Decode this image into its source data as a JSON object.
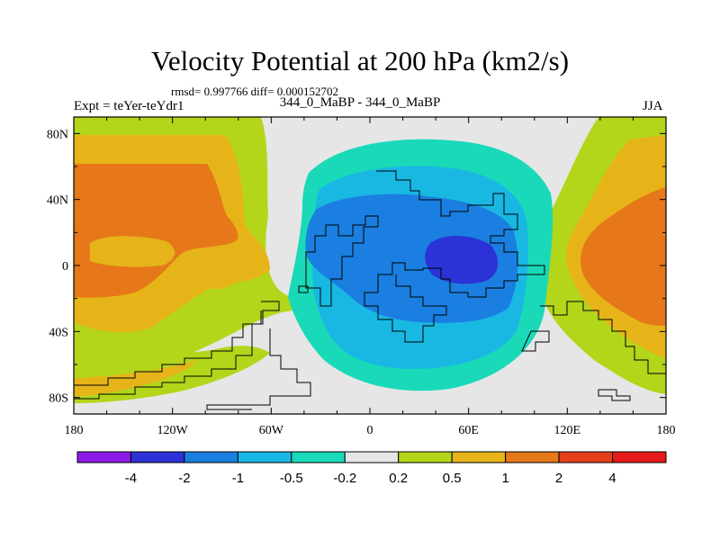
{
  "chart_data": {
    "type": "heatmap",
    "title": "Velocity Potential at 200 hPa (km2/s)",
    "stats_text": "rmsd= 0.997766 diff= 0.000152702",
    "subtitle": "344_0_MaBP - 344_0_MaBP",
    "left_label": "Expt = teYer-teYdr1",
    "right_label": "JJA",
    "x_ticks": [
      {
        "value": -180,
        "label": "180"
      },
      {
        "value": -120,
        "label": "120W"
      },
      {
        "value": -60,
        "label": "60W"
      },
      {
        "value": 0,
        "label": "0"
      },
      {
        "value": 60,
        "label": "60E"
      },
      {
        "value": 120,
        "label": "120E"
      },
      {
        "value": 180,
        "label": "180"
      }
    ],
    "y_ticks": [
      {
        "value": 80,
        "label": "80N"
      },
      {
        "value": 40,
        "label": "40N"
      },
      {
        "value": 0,
        "label": "0"
      },
      {
        "value": -40,
        "label": "40S"
      },
      {
        "value": -80,
        "label": "80S"
      }
    ],
    "xlim": [
      -180,
      180
    ],
    "ylim": [
      -90,
      90
    ],
    "colorbar": {
      "colors": [
        "#8c1ae6",
        "#2b32d6",
        "#1a7fe0",
        "#19b8e3",
        "#1ad9b8",
        "#e6e6e6",
        "#b3d61a",
        "#e6b419",
        "#e67819",
        "#e6401a",
        "#e61a1a"
      ],
      "labels": [
        "-4",
        "-2",
        "-1",
        "-0.5",
        "-0.2",
        "0.2",
        "0.5",
        "1",
        "2",
        "4"
      ]
    },
    "regions": [
      {
        "level": "0.2 to 0.5",
        "color": "#b3d61a",
        "lon": -150,
        "lat": 10
      },
      {
        "level": "0.5 to 1",
        "color": "#e6b419",
        "lon": -135,
        "lat": 20
      },
      {
        "level": "1 to 2",
        "color": "#e67819",
        "lon": -150,
        "lat": 30
      },
      {
        "level": "-0.5 to -0.2",
        "color": "#1ad9b8",
        "lon": 20,
        "lat": 60
      },
      {
        "level": "-1 to -0.5",
        "color": "#19b8e3",
        "lon": 20,
        "lat": 40
      },
      {
        "level": "-2 to -1",
        "color": "#1a7fe0",
        "lon": 10,
        "lat": 10
      },
      {
        "level": "-4 to -2",
        "color": "#2b32d6",
        "lon": 55,
        "lat": 5
      },
      {
        "level": "0.5 to 1",
        "color": "#e6b419",
        "lon": 170,
        "lat": 50
      },
      {
        "level": "1 to 2",
        "color": "#e67819",
        "lon": 160,
        "lat": 0
      }
    ]
  }
}
